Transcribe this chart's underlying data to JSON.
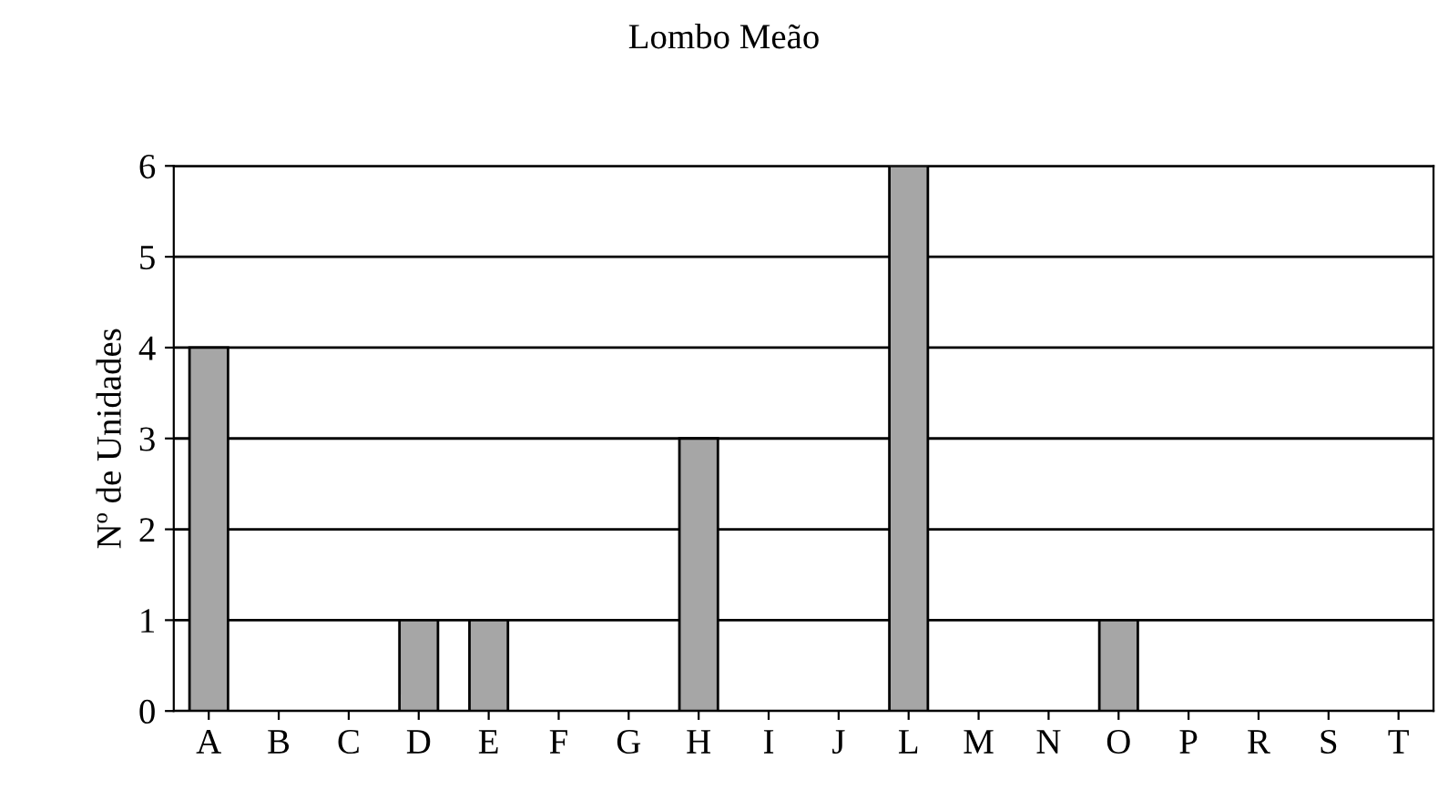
{
  "chart_data": {
    "type": "bar",
    "title": "Lombo Meão",
    "ylabel": "Nº de Unidades",
    "categories": [
      "A",
      "B",
      "C",
      "D",
      "E",
      "F",
      "G",
      "H",
      "I",
      "J",
      "L",
      "M",
      "N",
      "O",
      "P",
      "R",
      "S",
      "T"
    ],
    "values": [
      4,
      0,
      0,
      1,
      1,
      0,
      0,
      3,
      0,
      0,
      6,
      0,
      0,
      1,
      0,
      0,
      0,
      0
    ],
    "color": "#a6a6a6",
    "ylim": [
      0,
      6
    ],
    "yticks": [
      0,
      1,
      2,
      3,
      4,
      5,
      6
    ],
    "grid": "y",
    "legend": false
  }
}
